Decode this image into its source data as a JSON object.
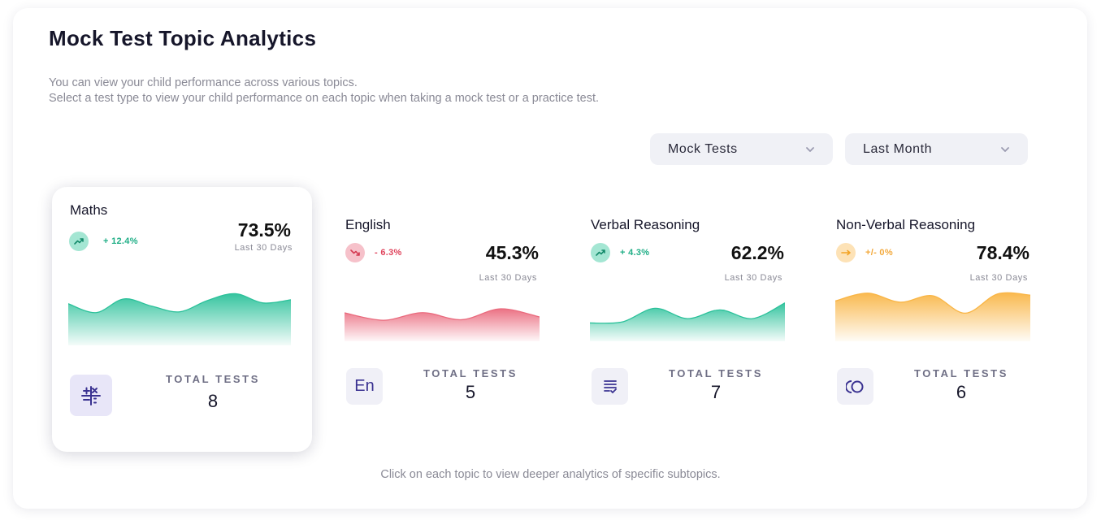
{
  "page": {
    "title": "Mock Test Topic Analytics",
    "description_line1": "You can view your child performance across various topics.",
    "description_line2": "Select a test type to view your child performance on each topic when taking a mock test or a practice test.",
    "footer_note": "Click on each topic to view deeper analytics of specific subtopics."
  },
  "filters": {
    "test_type": {
      "selected": "Mock Tests",
      "icon": "chevron-down-icon"
    },
    "period": {
      "selected": "Last Month",
      "icon": "chevron-down-icon"
    }
  },
  "topics": [
    {
      "name": "Maths",
      "change": "+ 12.4%",
      "trend": "up",
      "percentage": "73.5%",
      "period_label": "Last 30 Days",
      "total_tests_label": "TOTAL TESTS",
      "total_tests": "8",
      "icon": "math-operators-icon",
      "color": "#2bc19a",
      "selected": true,
      "sparkline": [
        0.5,
        0.28,
        0.62,
        0.44,
        0.3,
        0.58,
        0.75,
        0.52,
        0.6
      ]
    },
    {
      "name": "English",
      "change": "- 6.3%",
      "trend": "down",
      "percentage": "45.3%",
      "period_label": "Last 30 Days",
      "total_tests_label": "TOTAL TESTS",
      "total_tests": "5",
      "icon": "language-en-icon",
      "icon_text": "En",
      "color": "#ea6b7e",
      "selected": false,
      "sparkline": [
        0.55,
        0.28,
        0.56,
        0.3,
        0.7,
        0.4
      ]
    },
    {
      "name": "Verbal Reasoning",
      "change": "+ 4.3%",
      "trend": "up",
      "percentage": "62.2%",
      "period_label": "Last 30 Days",
      "total_tests_label": "TOTAL TESTS",
      "total_tests": "7",
      "icon": "document-check-icon",
      "color": "#2bc19a",
      "selected": false,
      "sparkline": [
        0.18,
        0.22,
        0.72,
        0.34,
        0.66,
        0.34,
        0.92
      ]
    },
    {
      "name": "Non-Verbal Reasoning",
      "change": "+/- 0%",
      "trend": "flat",
      "percentage": "78.4%",
      "period_label": "Last 30 Days",
      "total_tests_label": "TOTAL TESTS",
      "total_tests": "6",
      "icon": "shapes-icon",
      "color": "#f9b545",
      "selected": false,
      "sparkline": [
        0.74,
        0.98,
        0.7,
        0.9,
        0.36,
        0.96,
        0.92
      ]
    }
  ]
}
